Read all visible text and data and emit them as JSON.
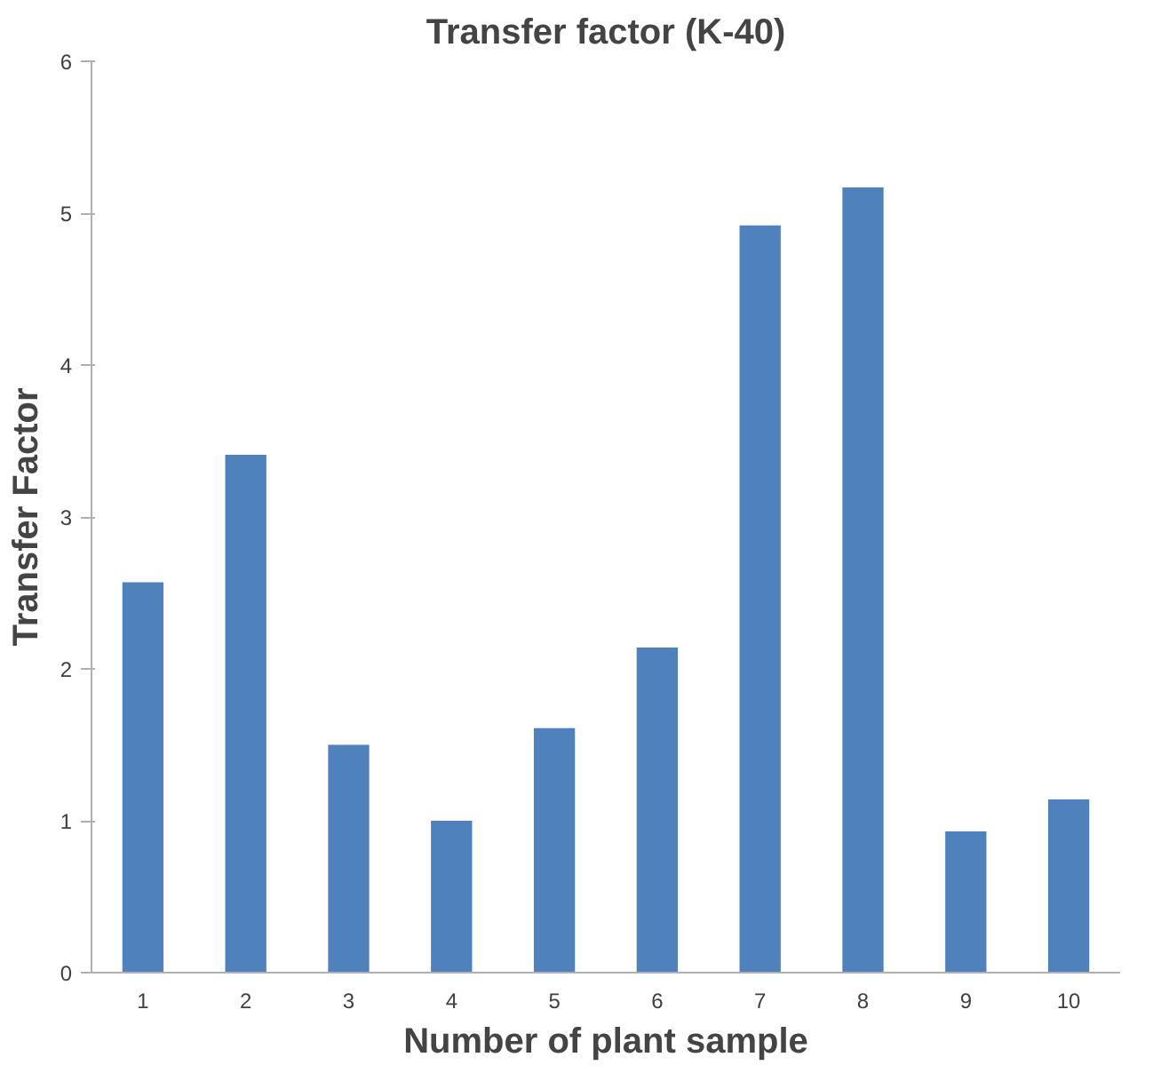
{
  "chart_data": {
    "type": "bar",
    "title": "Transfer factor (K-40)",
    "xlabel": "Number of plant sample",
    "ylabel": "Transfer Factor",
    "categories": [
      "1",
      "2",
      "3",
      "4",
      "5",
      "6",
      "7",
      "8",
      "9",
      "10"
    ],
    "values": [
      2.57,
      3.41,
      1.5,
      1.0,
      1.61,
      2.14,
      4.92,
      5.17,
      0.93,
      1.14
    ],
    "color": "#4f81bd",
    "ylim": [
      0,
      6
    ],
    "yticks": [
      0,
      1,
      2,
      3,
      4,
      5,
      6
    ],
    "grid": false
  }
}
